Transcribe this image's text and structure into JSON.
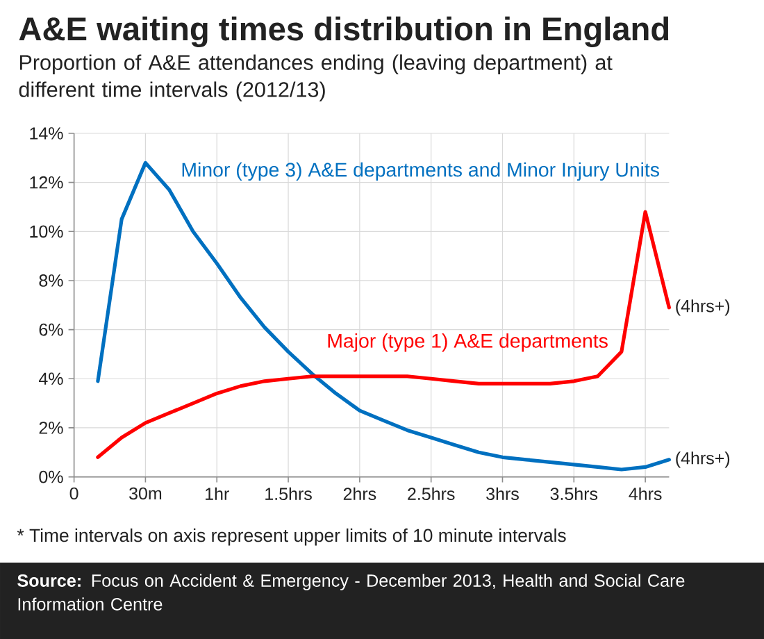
{
  "chart_data": {
    "type": "line",
    "title": "A&E waiting times distribution in England",
    "subtitle": "Proportion of A&E attendances ending (leaving department) at different time intervals (2012/13)",
    "categories": [
      "0",
      null,
      null,
      "30m",
      null,
      null,
      "1hr",
      null,
      null,
      "1.5hrs",
      null,
      null,
      "2hrs",
      null,
      null,
      "2.5hrs",
      null,
      null,
      "3hrs",
      null,
      null,
      "3.5hrs",
      null,
      null,
      "4hrs",
      null
    ],
    "series": [
      {
        "name": "Minor (type 3) A&E departments and Minor Injury Units",
        "color": "#0070c0",
        "values": [
          null,
          3.9,
          10.5,
          12.8,
          11.7,
          10.0,
          8.7,
          7.3,
          6.1,
          5.1,
          4.2,
          3.4,
          2.7,
          2.3,
          1.9,
          1.6,
          1.3,
          1.0,
          0.8,
          0.7,
          0.6,
          0.5,
          0.4,
          0.3,
          0.4,
          0.7
        ]
      },
      {
        "name": "Major (type 1) A&E departments",
        "color": "#ff0000",
        "values": [
          null,
          0.8,
          1.6,
          2.2,
          2.6,
          3.0,
          3.4,
          3.7,
          3.9,
          4.0,
          4.1,
          4.1,
          4.1,
          4.1,
          4.1,
          4.0,
          3.9,
          3.8,
          3.8,
          3.8,
          3.8,
          3.9,
          4.1,
          5.1,
          10.8,
          6.9
        ]
      }
    ],
    "ylim": [
      0,
      14
    ],
    "yticks": [
      {
        "value": 0,
        "label": "0%"
      },
      {
        "value": 2,
        "label": "2%"
      },
      {
        "value": 4,
        "label": "4%"
      },
      {
        "value": 6,
        "label": "6%"
      },
      {
        "value": 8,
        "label": "8%"
      },
      {
        "value": 10,
        "label": "10%"
      },
      {
        "value": 12,
        "label": "12%"
      },
      {
        "value": 14,
        "label": "14%"
      }
    ],
    "grid": true,
    "legend": false,
    "marker": "none",
    "line_style": "solid",
    "annotations": [
      "(4hrs+)",
      "(4hrs+)",
      "* Time intervals on axis represent upper limits of 10 minute intervals",
      "**Source:** Focus on Accident & Emergency - December 2013, Health and Social Care Information Centre"
    ]
  }
}
